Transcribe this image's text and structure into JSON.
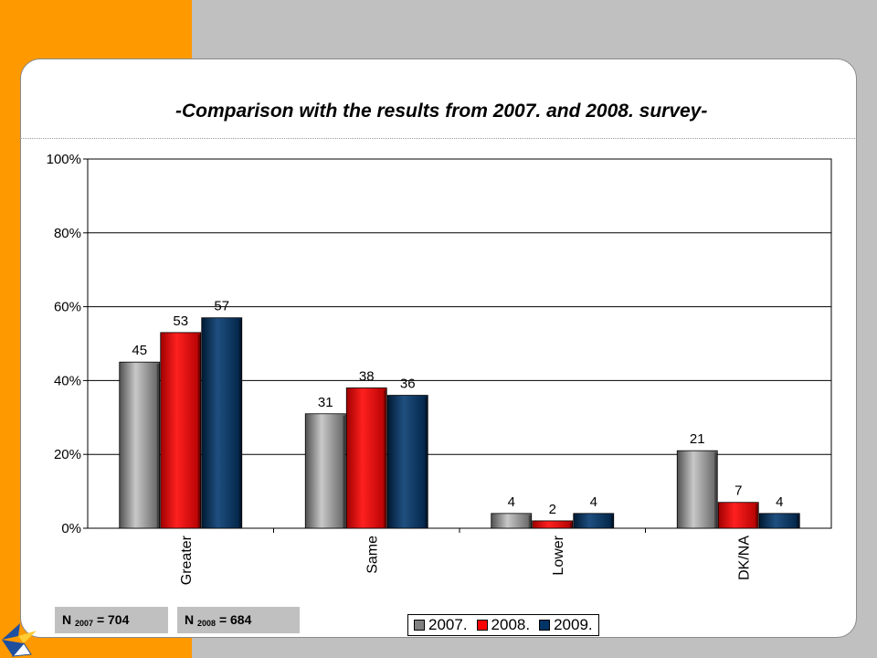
{
  "page": {
    "title": "-Comparison with the results from 2007. and 2008. survey-",
    "background_color": "#c0c0c0",
    "accent_color": "#ff9900"
  },
  "sample_sizes": [
    {
      "label": "N",
      "year": "2007",
      "value": "= 704"
    },
    {
      "label": "N",
      "year": "2008",
      "value": "= 684"
    }
  ],
  "chart_data": {
    "type": "bar",
    "categories": [
      "Greater",
      "Same",
      "Lower",
      "DK/NA"
    ],
    "series": [
      {
        "name": "2007.",
        "color": "#808080",
        "values": [
          45,
          31,
          4,
          21
        ]
      },
      {
        "name": "2008.",
        "color": "#ff0000",
        "values": [
          53,
          38,
          2,
          7
        ]
      },
      {
        "name": "2009.",
        "color": "#003366",
        "values": [
          57,
          36,
          4,
          4
        ]
      }
    ],
    "y_ticks": [
      "0%",
      "20%",
      "40%",
      "60%",
      "80%",
      "100%"
    ],
    "ylim": [
      0,
      100
    ],
    "grid": true,
    "legend_position": "bottom-right",
    "data_labels": true
  }
}
